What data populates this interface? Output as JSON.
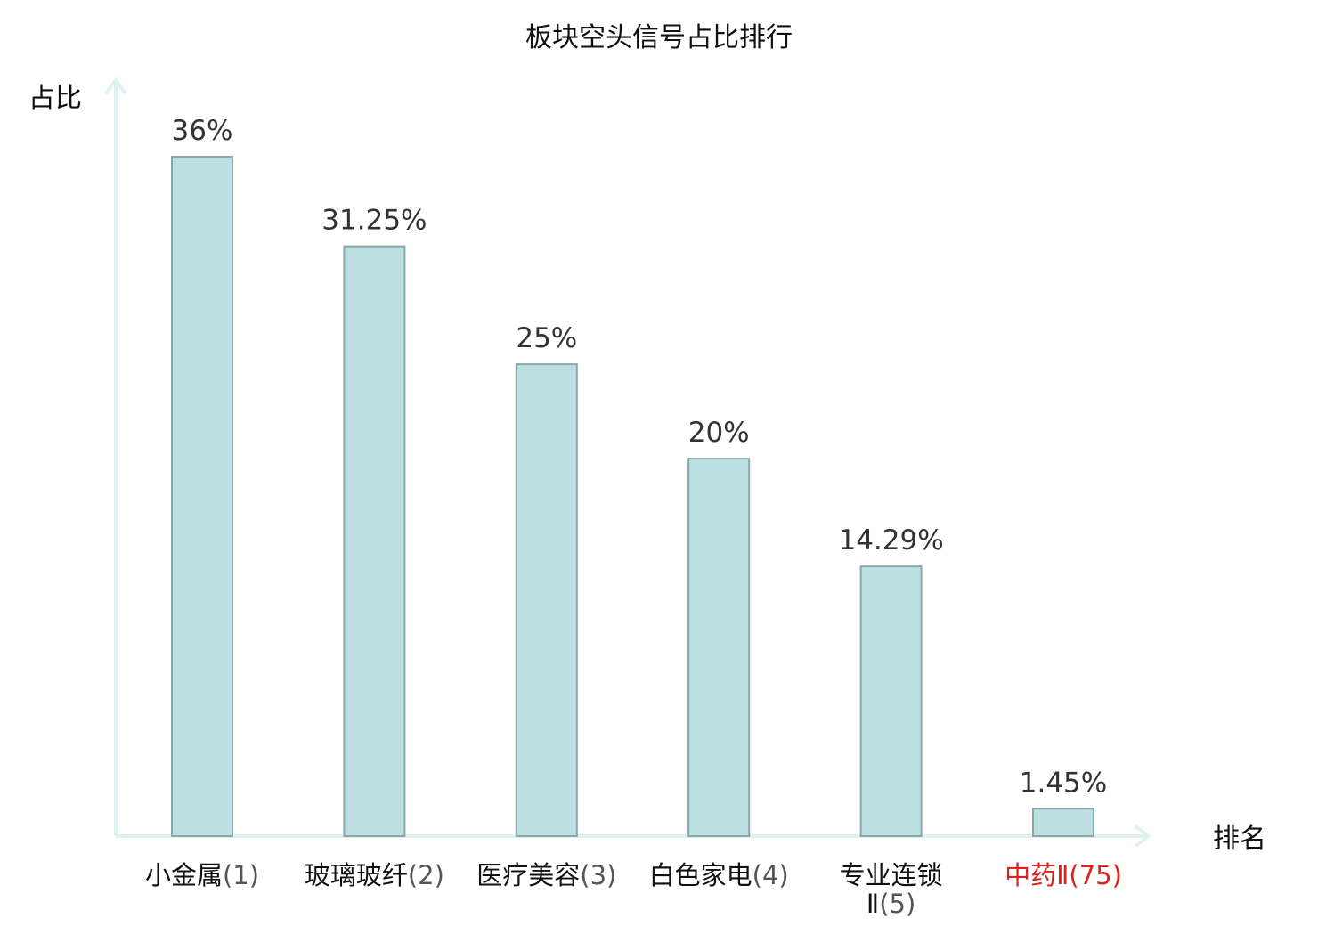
{
  "chart_data": {
    "type": "bar",
    "title": "板块空头信号占比排行",
    "ylabel": "占比",
    "xlabel": "排名",
    "ylim": [
      0,
      40
    ],
    "grid": false,
    "categories": [
      {
        "name": "小金属",
        "rank": "(1)"
      },
      {
        "name": "玻璃玻纤",
        "rank": "(2)"
      },
      {
        "name": "医疗美容",
        "rank": "(3)"
      },
      {
        "name": "白色家电",
        "rank": "(4)"
      },
      {
        "name": "专业连锁",
        "name2": "Ⅱ",
        "rank": "(5)"
      },
      {
        "name": "中药Ⅱ",
        "rank": "(75)",
        "highlight": true
      }
    ],
    "values": [
      36,
      31.25,
      25,
      20,
      14.29,
      1.45
    ],
    "value_labels": [
      "36%",
      "31.25%",
      "25%",
      "20%",
      "14.29%",
      "1.45%"
    ]
  },
  "colors": {
    "bar_fill": "#bde0e3",
    "bar_stroke": "#8aa6a8",
    "axis": "#def3f1",
    "highlight_text": "#e0201c",
    "text": "#111111",
    "value_text": "#333333",
    "rank_text": "#555555"
  }
}
